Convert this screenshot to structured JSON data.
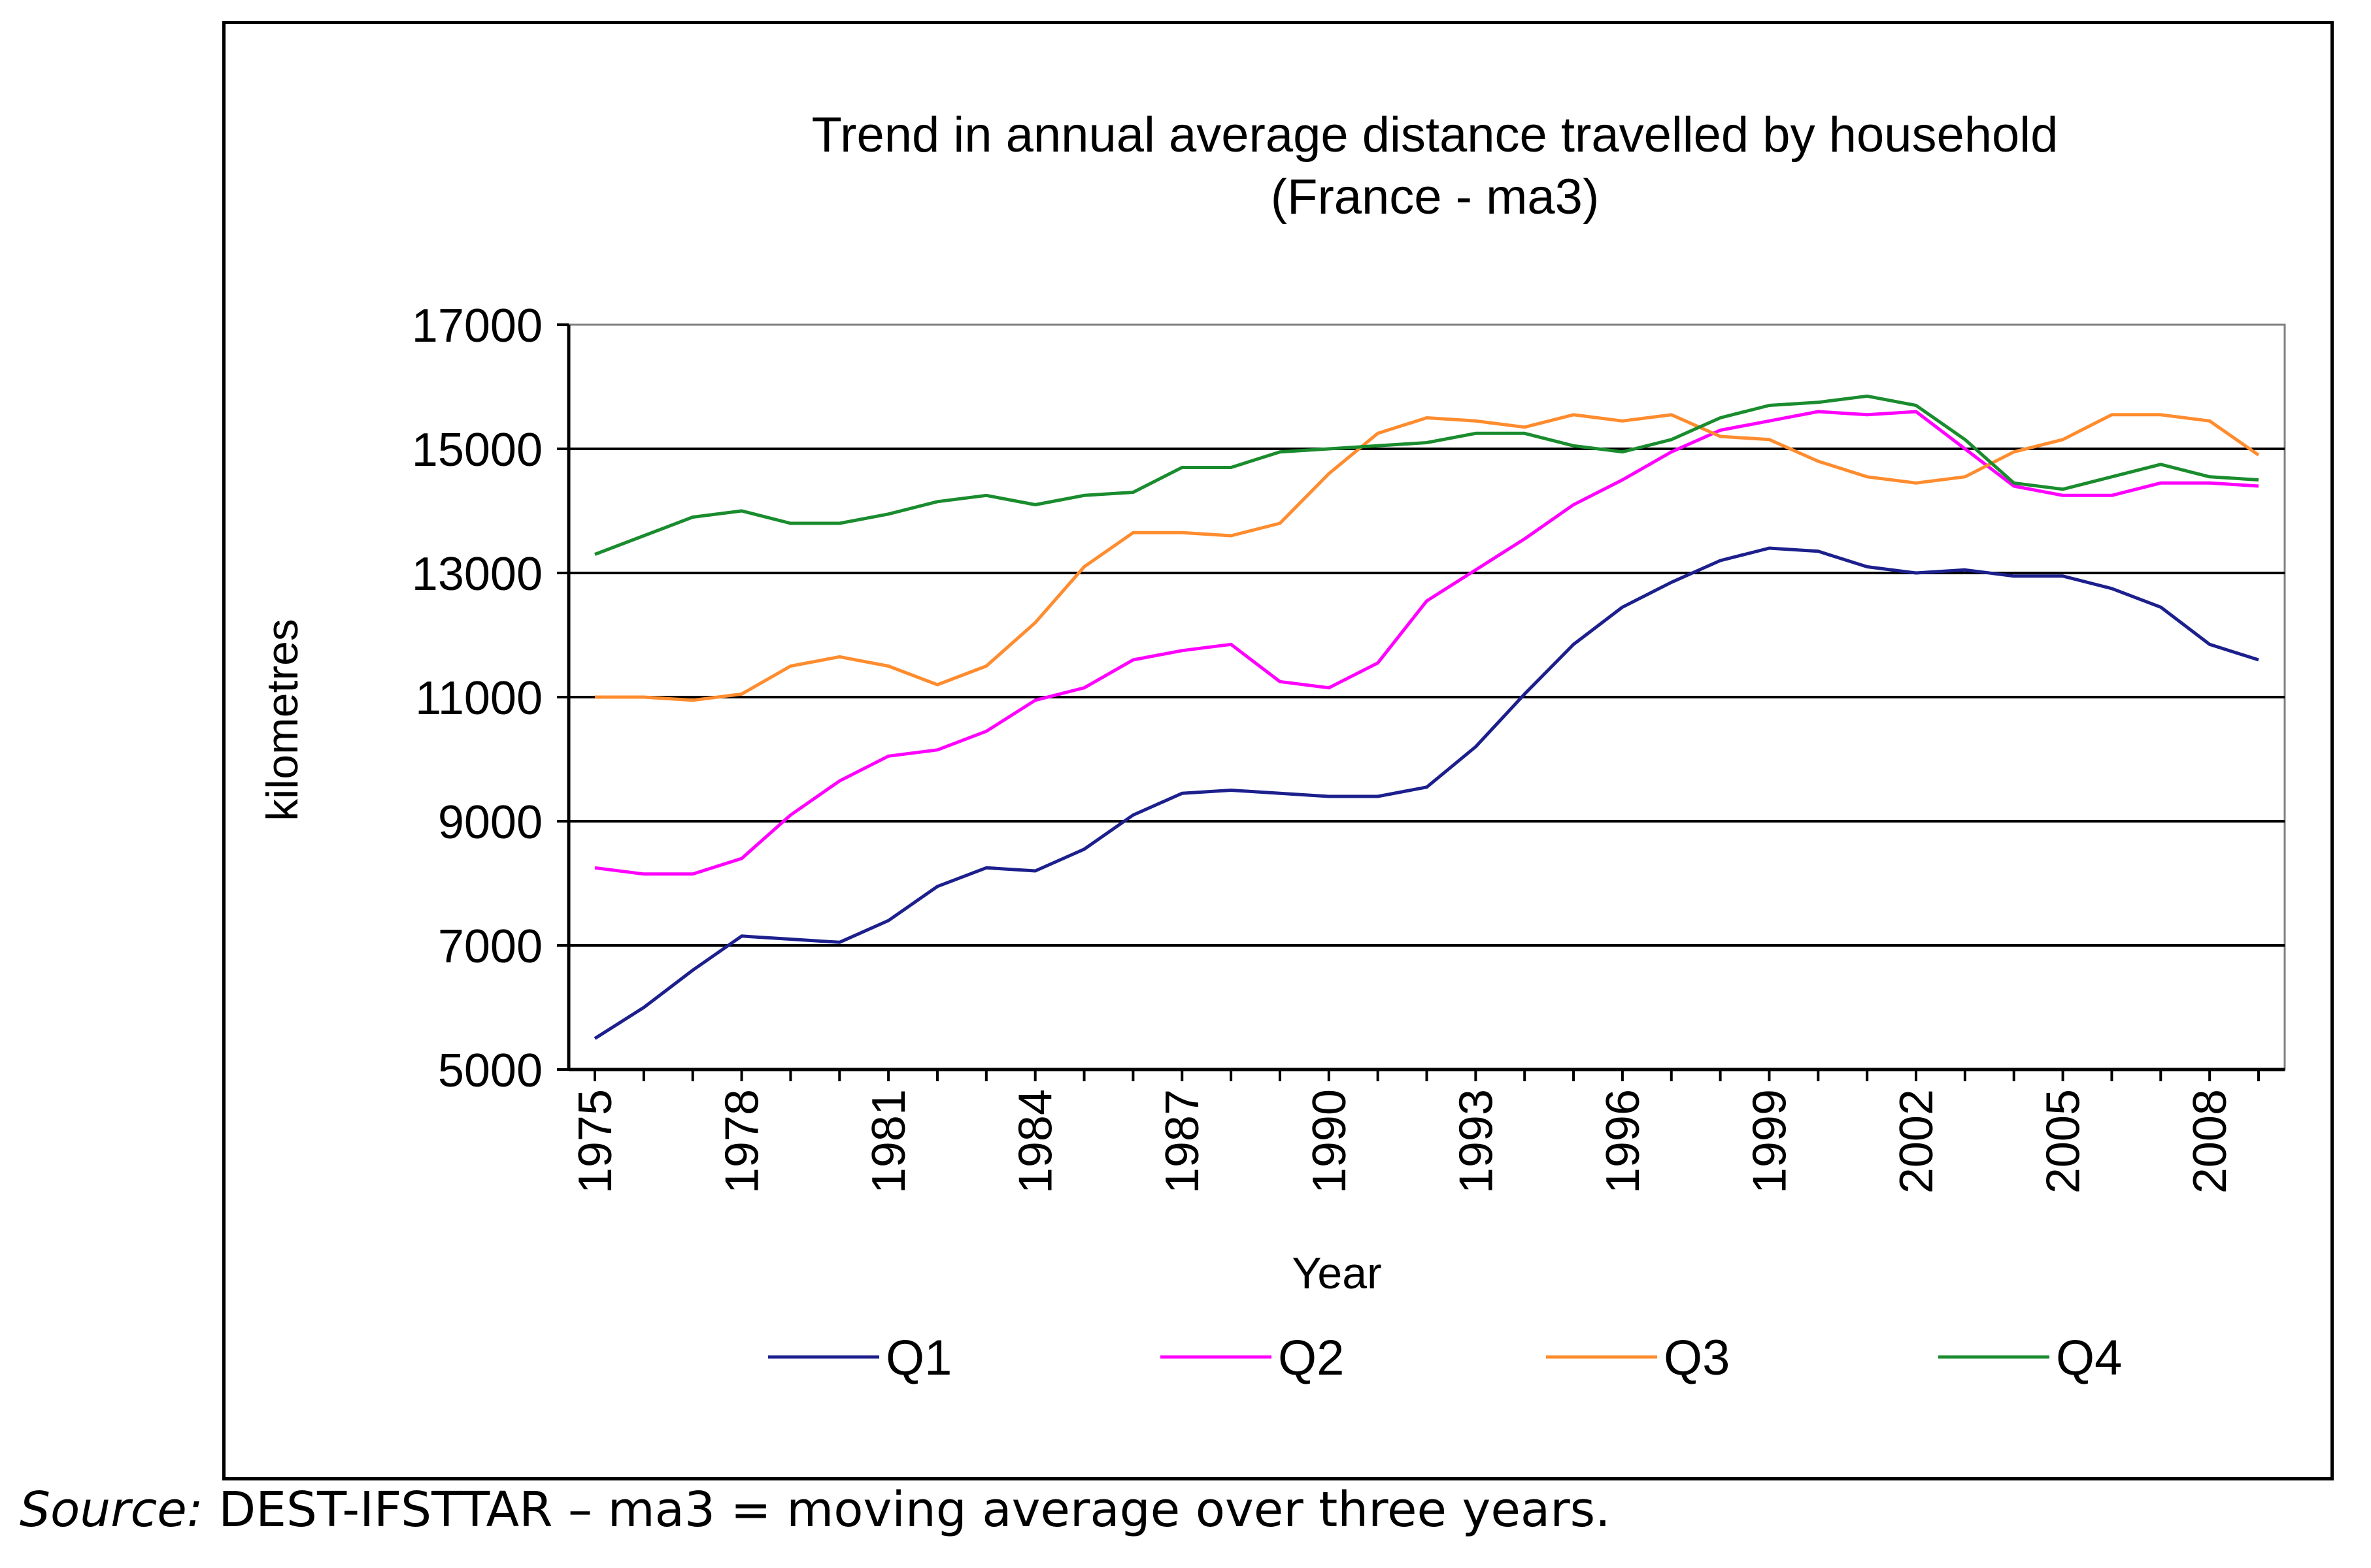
{
  "chart_data": {
    "type": "line",
    "title": "Trend in annual average distance travelled by household",
    "subtitle": "(France - ma3)",
    "xlabel": "Year",
    "ylabel": "kilometres",
    "ylim": [
      5000,
      17000
    ],
    "yticks": [
      "5000",
      "7000",
      "9000",
      "11000",
      "13000",
      "15000",
      "17000"
    ],
    "x": [
      1975,
      1976,
      1977,
      1978,
      1979,
      1980,
      1981,
      1982,
      1983,
      1984,
      1985,
      1986,
      1987,
      1988,
      1989,
      1990,
      1991,
      1992,
      1993,
      1994,
      1995,
      1996,
      1997,
      1998,
      1999,
      2000,
      2001,
      2002,
      2003,
      2004,
      2005,
      2006,
      2007,
      2008,
      2009
    ],
    "xtick_labels": [
      "1975",
      "1978",
      "1981",
      "1984",
      "1987",
      "1990",
      "1993",
      "1996",
      "1999",
      "2002",
      "2005",
      "2008"
    ],
    "grid": "horizontal",
    "legend_position": "bottom",
    "series": [
      {
        "name": "Q1",
        "color": "#1c1f8c",
        "values": [
          5500,
          6000,
          6600,
          7150,
          7100,
          7050,
          7400,
          7950,
          8250,
          8200,
          8550,
          9100,
          9450,
          9500,
          9450,
          9400,
          9400,
          9550,
          10200,
          11050,
          11850,
          12450,
          12850,
          13200,
          13400,
          13350,
          13100,
          13000,
          13050,
          12950,
          12950,
          12750,
          12450,
          11850,
          11600
        ]
      },
      {
        "name": "Q2",
        "color": "#ff00ff",
        "values": [
          8250,
          8150,
          8150,
          8400,
          9100,
          9650,
          10050,
          10150,
          10450,
          10950,
          11150,
          11600,
          11750,
          11850,
          11250,
          11150,
          11550,
          12550,
          13050,
          13550,
          14100,
          14500,
          14950,
          15300,
          15450,
          15600,
          15550,
          15600,
          15000,
          14400,
          14250,
          14250,
          14450,
          14450,
          14400
        ]
      },
      {
        "name": "Q3",
        "color": "#ff8c2e",
        "values": [
          11000,
          11000,
          10950,
          11050,
          11500,
          11650,
          11500,
          11200,
          11500,
          12200,
          13100,
          13650,
          13650,
          13600,
          13800,
          14600,
          15250,
          15500,
          15450,
          15350,
          15550,
          15450,
          15550,
          15200,
          15150,
          14800,
          14550,
          14450,
          14550,
          14950,
          15150,
          15550,
          15550,
          15450,
          14900
        ]
      },
      {
        "name": "Q4",
        "color": "#1a8c2e",
        "values": [
          13300,
          13600,
          13900,
          14000,
          13800,
          13800,
          13950,
          14150,
          14250,
          14100,
          14250,
          14300,
          14700,
          14700,
          14950,
          15000,
          15050,
          15100,
          15250,
          15250,
          15050,
          14950,
          15150,
          15500,
          15700,
          15750,
          15850,
          15700,
          15150,
          14450,
          14350,
          14550,
          14750,
          14550,
          14500
        ]
      }
    ]
  },
  "caption": {
    "source_label": "Source:",
    "text": " DEST-IFSTTAR – ma3 = moving average over three years."
  }
}
